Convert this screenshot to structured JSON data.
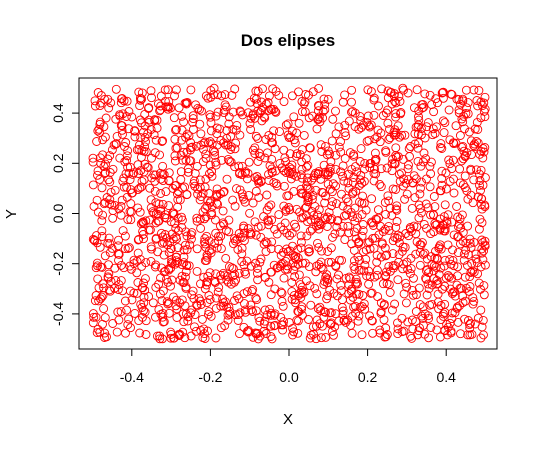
{
  "chart_data": {
    "type": "scatter",
    "title": "Dos elipses",
    "xlabel": "X",
    "ylabel": "Y",
    "xlim": [
      -0.5,
      0.5
    ],
    "ylim": [
      -0.5,
      0.5
    ],
    "x_ticks": [
      -0.4,
      -0.2,
      0.0,
      0.2,
      0.4
    ],
    "y_ticks": [
      -0.4,
      -0.2,
      0.0,
      0.2,
      0.4
    ],
    "x_tick_labels": [
      "-0.4",
      "-0.2",
      "0.0",
      "0.2",
      "0.4"
    ],
    "y_tick_labels": [
      "-0.4",
      "-0.2",
      "0.0",
      "0.2",
      "0.4"
    ],
    "grid": false,
    "marker": "open-circle",
    "point_color": "#ff0000",
    "point_count": 2000,
    "distribution": "uniform on [-0.5, 0.5] x [-0.5, 0.5]"
  }
}
